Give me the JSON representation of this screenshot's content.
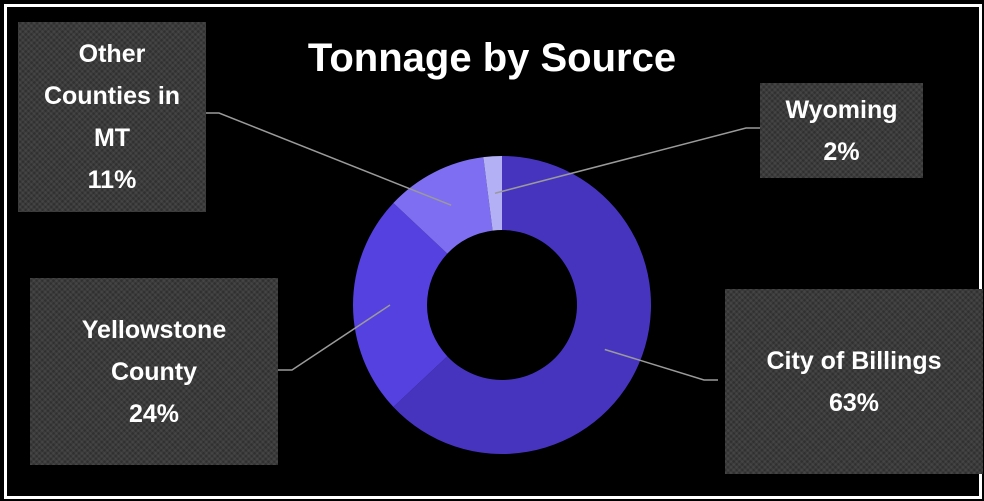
{
  "chart_data": {
    "type": "pie",
    "subtype": "doughnut",
    "title": "Tonnage by Source",
    "series": [
      {
        "name": "City of Billings",
        "value": 63,
        "label": [
          "City of Billings",
          "63%"
        ],
        "color": "#4634bf"
      },
      {
        "name": "Yellowstone County",
        "value": 24,
        "label": [
          "Yellowstone",
          "County",
          "24%"
        ],
        "color": "#5441df"
      },
      {
        "name": "Other Counties in MT",
        "value": 11,
        "label": [
          "Other",
          "Counties in",
          "MT",
          "11%"
        ],
        "color": "#7e6ef2"
      },
      {
        "name": "Wyoming",
        "value": 2,
        "label": [
          "Wyoming",
          "2%"
        ],
        "color": "#b3b0f5"
      }
    ],
    "legend": "none",
    "background": "#000000"
  }
}
